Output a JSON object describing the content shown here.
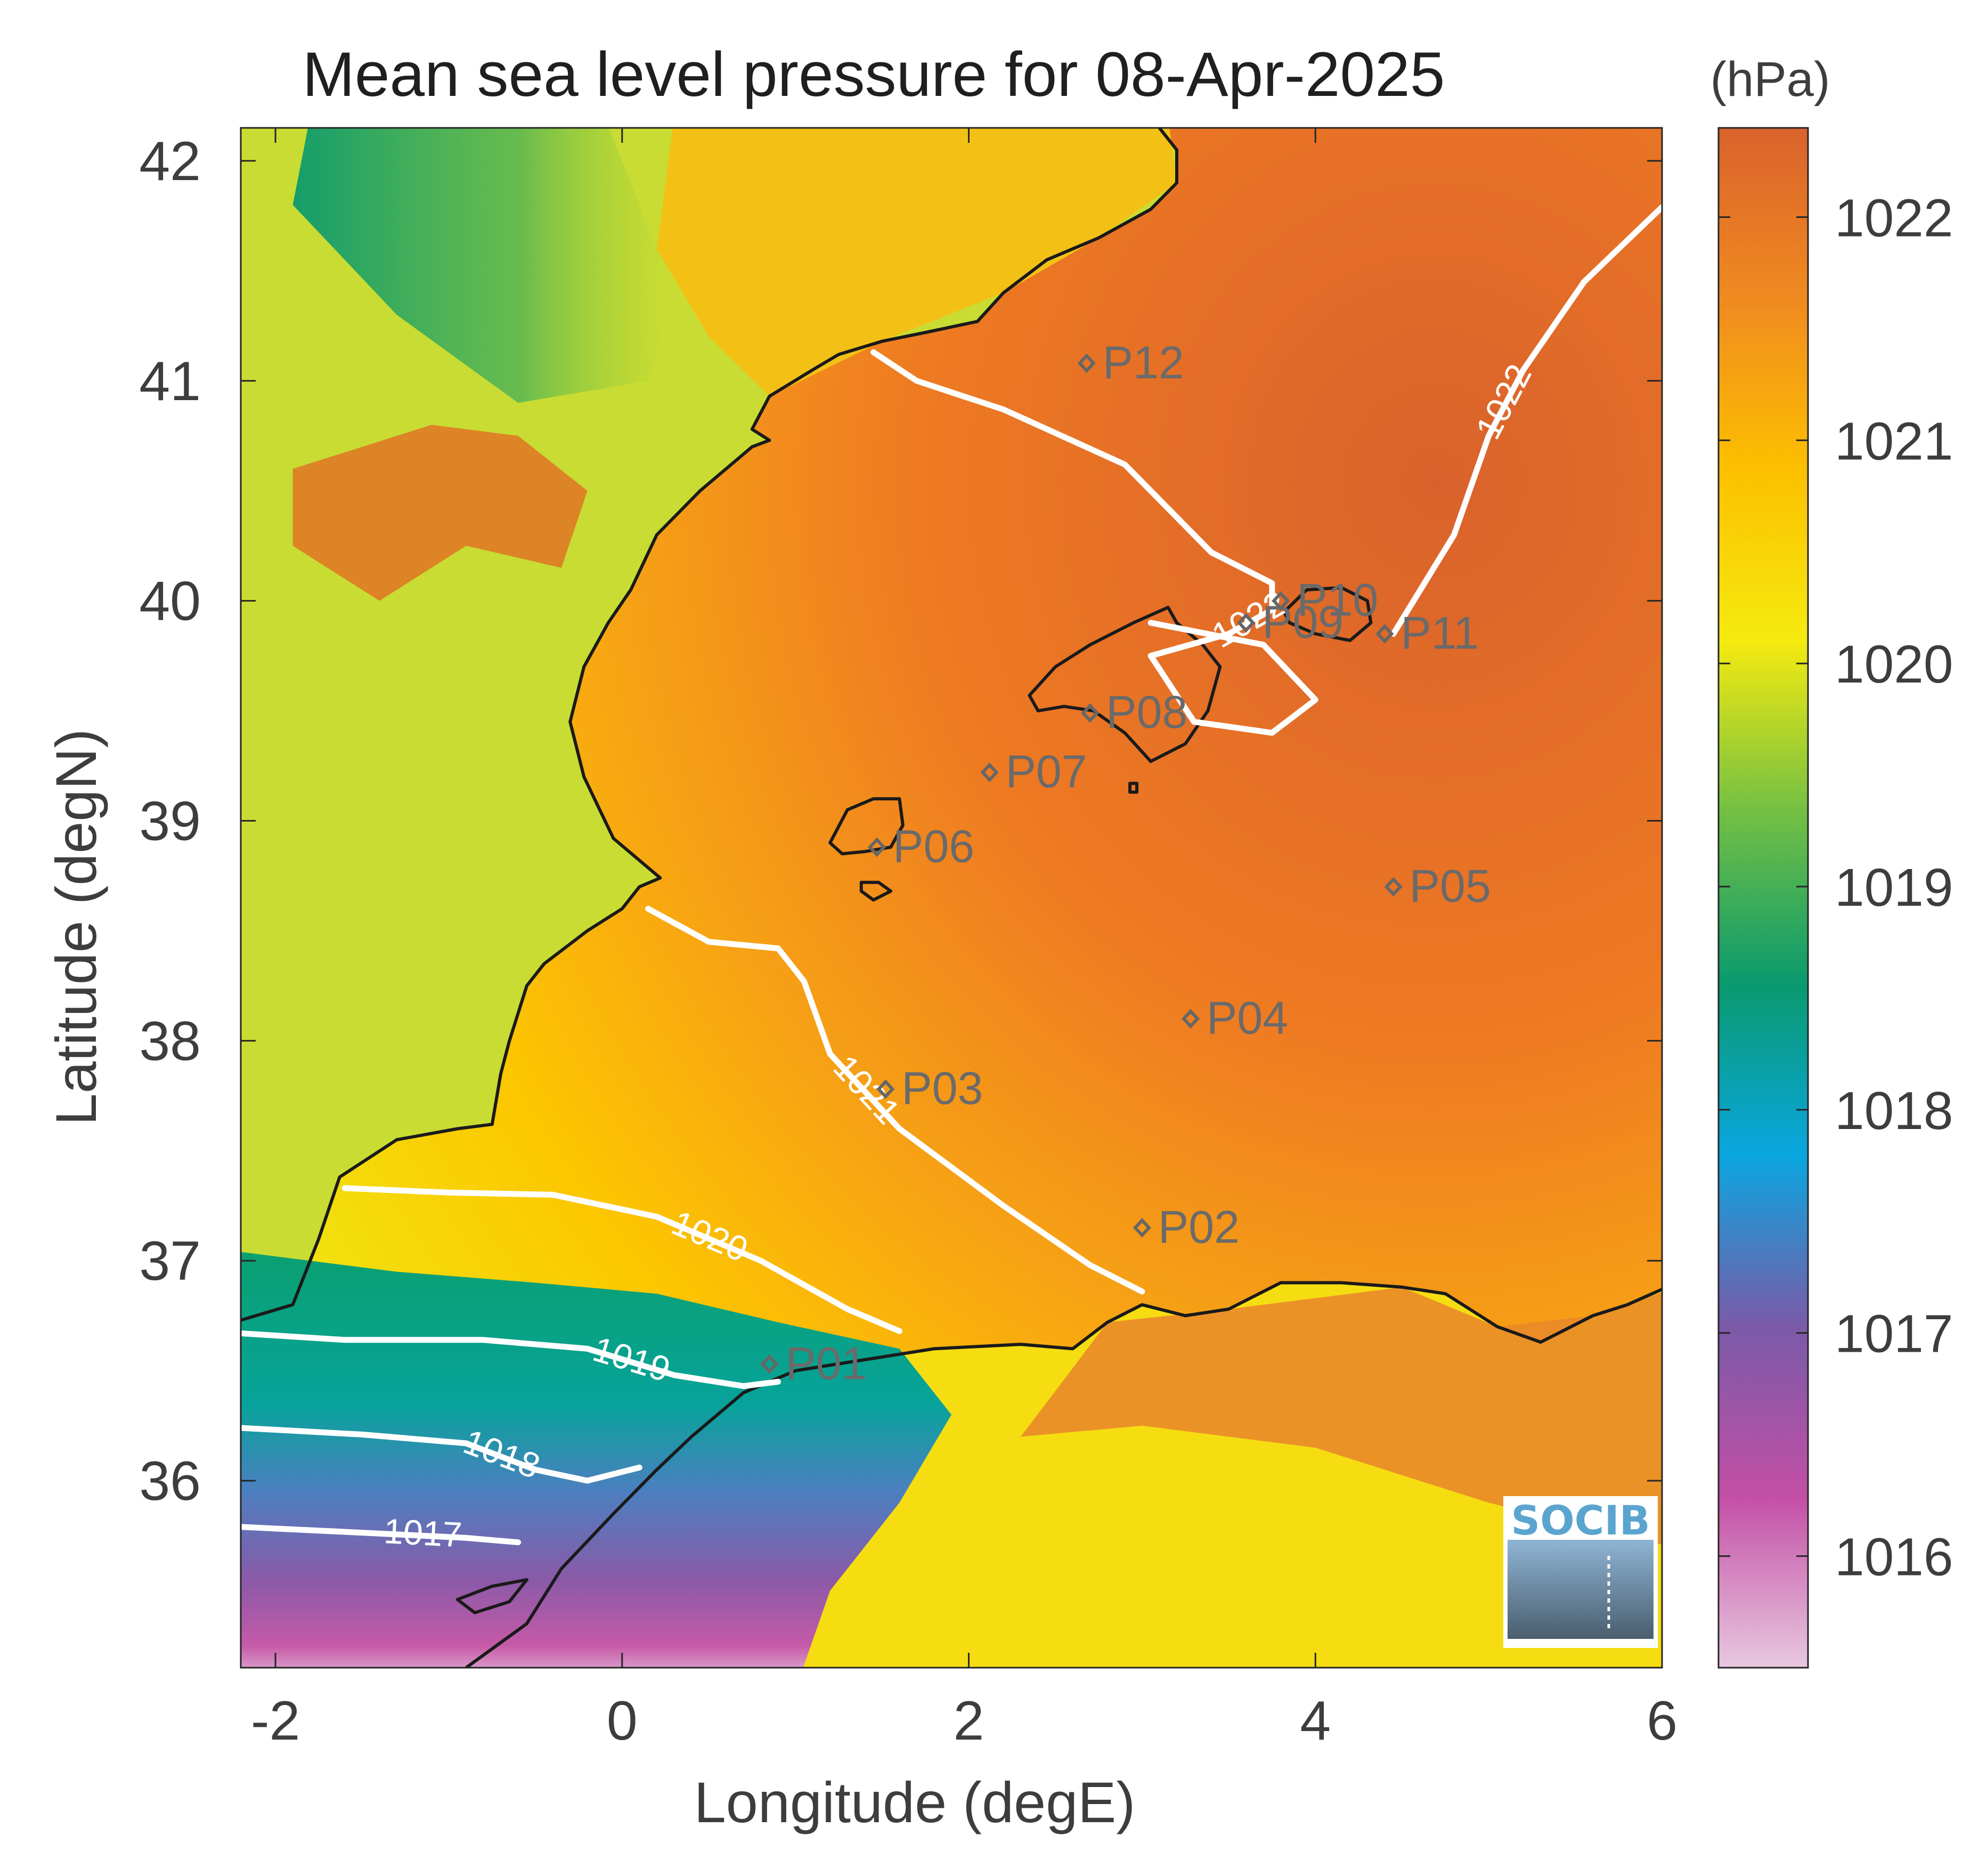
{
  "chart_data": {
    "type": "heatmap",
    "title": "Mean sea level pressure for 08-Apr-2025",
    "xlabel": "Longitude (degE)",
    "ylabel": "Latitude (degN)",
    "xlim": [
      -2.2,
      6.0
    ],
    "ylim": [
      35.15,
      42.15
    ],
    "xticks": [
      -2,
      0,
      2,
      4,
      6
    ],
    "xtick_labels": [
      "-2",
      "0",
      "2",
      "4",
      "6"
    ],
    "yticks": [
      36,
      37,
      38,
      39,
      40,
      41,
      42
    ],
    "ytick_labels": [
      "36",
      "37",
      "38",
      "39",
      "40",
      "41",
      "42"
    ],
    "grid": false,
    "colorbar": {
      "label": "(hPa)",
      "range": [
        1015.5,
        1022.4
      ],
      "ticks": [
        1016,
        1017,
        1018,
        1019,
        1020,
        1021,
        1022
      ],
      "tick_labels": [
        "1016",
        "1017",
        "1018",
        "1019",
        "1020",
        "1021",
        "1022"
      ],
      "colors": [
        "#e8c8e0",
        "#c34fa6",
        "#7a5aa8",
        "#0aa6df",
        "#0a9a6e",
        "#73c043",
        "#f5ea10",
        "#fcc000",
        "#f08a20",
        "#d9622c"
      ]
    },
    "contours": [
      {
        "level": 1017,
        "label": "1017",
        "lon": [
          -2.2,
          -1.4,
          -0.9,
          -0.6
        ],
        "lat": [
          35.79,
          35.76,
          35.74,
          35.72
        ]
      },
      {
        "level": 1018,
        "label": "1018",
        "lon": [
          -2.2,
          -1.5,
          -0.9,
          -0.5,
          -0.2,
          0.1
        ],
        "lat": [
          36.24,
          36.21,
          36.17,
          36.05,
          36.0,
          36.06
        ]
      },
      {
        "level": 1019,
        "label": "1019",
        "lon": [
          -2.2,
          -1.6,
          -0.8,
          -0.2,
          0.3,
          0.7,
          0.9
        ],
        "lat": [
          36.67,
          36.64,
          36.64,
          36.6,
          36.48,
          36.43,
          36.45
        ]
      },
      {
        "level": 1020,
        "label": "1020",
        "lon": [
          -1.6,
          -1.0,
          -0.4,
          0.2,
          0.8,
          1.3,
          1.6
        ],
        "lat": [
          37.33,
          37.31,
          37.3,
          37.2,
          37.0,
          36.78,
          36.68
        ]
      },
      {
        "level": 1021,
        "label": "1021",
        "lon": [
          0.15,
          0.5,
          0.9,
          1.05,
          1.2,
          1.6,
          2.2,
          2.7,
          3.0
        ],
        "lat": [
          38.6,
          38.45,
          38.42,
          38.27,
          37.94,
          37.6,
          37.25,
          36.98,
          36.86
        ]
      },
      {
        "level": 1022,
        "label": "1022",
        "lon": [
          1.45,
          1.7,
          2.2,
          2.9,
          3.4,
          3.75,
          3.75,
          3.5,
          3.05,
          3.3,
          3.75,
          4.0,
          3.7,
          3.05
        ],
        "lat": [
          41.13,
          41.0,
          40.87,
          40.62,
          40.22,
          40.08,
          39.96,
          39.85,
          39.75,
          39.45,
          39.4,
          39.55,
          39.8,
          39.9
        ]
      },
      {
        "level": 1022,
        "label": "1022",
        "lon": [
          4.45,
          4.8,
          5.0,
          5.2,
          5.55,
          6.0
        ],
        "lat": [
          39.85,
          40.3,
          40.75,
          41.05,
          41.45,
          41.79
        ]
      }
    ],
    "stations": [
      {
        "name": "P01",
        "lon": 0.85,
        "lat": 36.53
      },
      {
        "name": "P02",
        "lon": 3.0,
        "lat": 37.15
      },
      {
        "name": "P03",
        "lon": 1.52,
        "lat": 37.78
      },
      {
        "name": "P04",
        "lon": 3.28,
        "lat": 38.1
      },
      {
        "name": "P05",
        "lon": 4.45,
        "lat": 38.7
      },
      {
        "name": "P06",
        "lon": 1.47,
        "lat": 38.88
      },
      {
        "name": "P07",
        "lon": 2.12,
        "lat": 39.22
      },
      {
        "name": "P08",
        "lon": 2.7,
        "lat": 39.49
      },
      {
        "name": "P09",
        "lon": 3.6,
        "lat": 39.9
      },
      {
        "name": "P10",
        "lon": 3.8,
        "lat": 40.0
      },
      {
        "name": "P11",
        "lon": 4.4,
        "lat": 39.85
      },
      {
        "name": "P12",
        "lon": 2.68,
        "lat": 41.08
      }
    ],
    "logo": "SOCIB"
  }
}
